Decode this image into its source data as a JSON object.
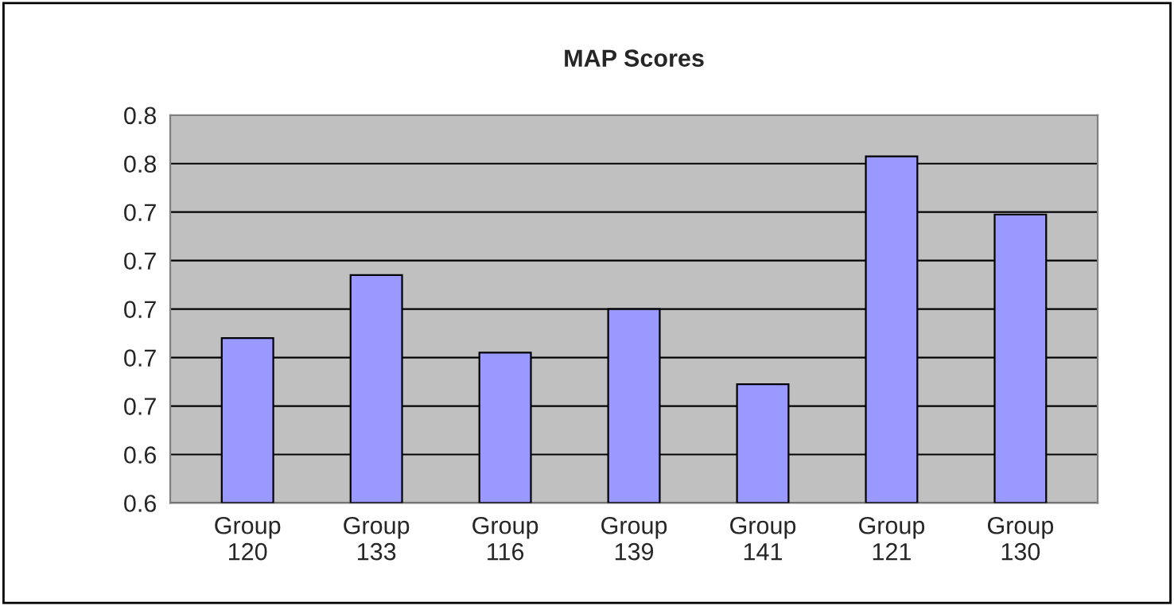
{
  "chart_data": {
    "type": "bar",
    "title": "MAP Scores",
    "categories": [
      "Group\n120",
      "Group\n133",
      "Group\n116",
      "Group\n139",
      "Group\n141",
      "Group\n121",
      "Group\n130"
    ],
    "values": [
      0.688,
      0.714,
      0.682,
      0.7,
      0.669,
      0.763,
      0.739
    ],
    "color": "#9999ff",
    "ylim": [
      0.62,
      0.78
    ],
    "yticks": [
      {
        "value": 0.62,
        "label": "0.6"
      },
      {
        "value": 0.64,
        "label": "0.6"
      },
      {
        "value": 0.66,
        "label": "0.7"
      },
      {
        "value": 0.68,
        "label": "0.7"
      },
      {
        "value": 0.7,
        "label": "0.7"
      },
      {
        "value": 0.72,
        "label": "0.7"
      },
      {
        "value": 0.74,
        "label": "0.7"
      },
      {
        "value": 0.76,
        "label": "0.8"
      },
      {
        "value": 0.78,
        "label": "0.8"
      }
    ],
    "grid": "y",
    "legend": false
  }
}
